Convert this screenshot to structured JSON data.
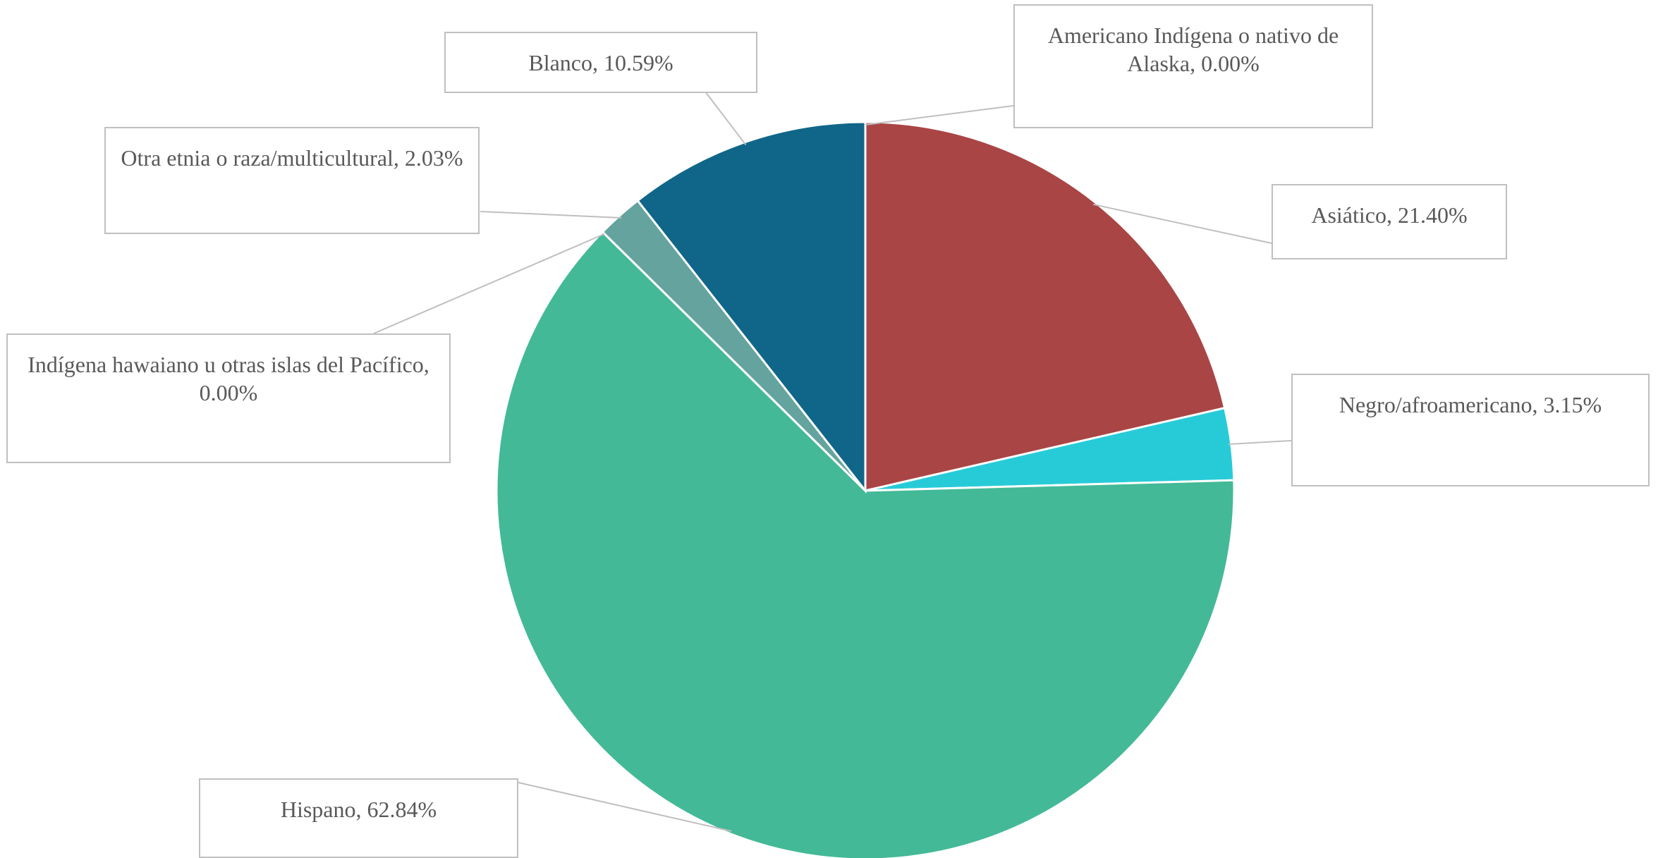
{
  "chart_data": {
    "type": "pie",
    "categories": [
      "Americano Indígena o nativo de Alaska,",
      "Asiático,",
      "Negro/afroamericano,",
      "Hispano,",
      "Indígena hawaiano u otras islas del Pacífico,",
      "Otra etnia o raza/multicultural,",
      "Blanco,"
    ],
    "values": [
      0.0,
      21.4,
      3.15,
      62.84,
      0.0,
      2.03,
      10.59
    ],
    "value_labels": [
      "0.00%",
      "21.40%",
      "3.15%",
      "62.84%",
      "0.00%",
      "2.03%",
      "10.59%"
    ],
    "colors": [
      "#7f7f7f",
      "#a94545",
      "#27cbd8",
      "#43b997",
      "#5b9bd5",
      "#64a39e",
      "#106688"
    ]
  }
}
